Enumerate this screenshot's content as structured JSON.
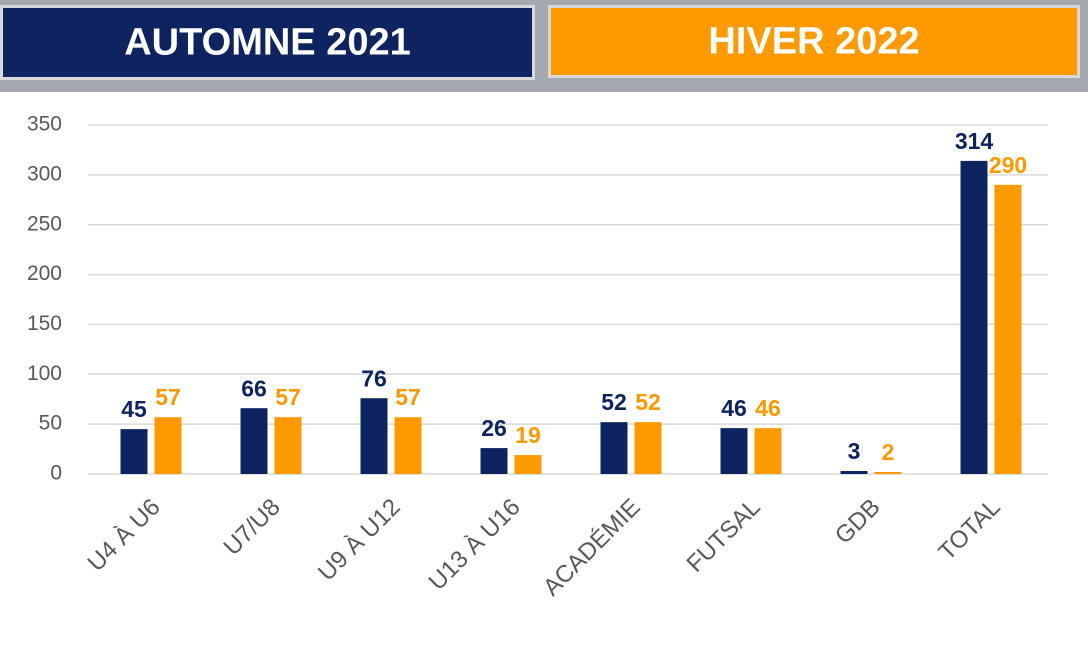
{
  "chart_data": {
    "type": "bar",
    "categories": [
      "U4 À U6",
      "U7/U8",
      "U9 À U12",
      "U13 À U16",
      "ACADÉMIE",
      "FUTSAL",
      "GDB",
      "TOTAL"
    ],
    "series": [
      {
        "name": "AUTOMNE 2021",
        "color": "#0d2461",
        "values": [
          45,
          66,
          76,
          26,
          52,
          46,
          3,
          314
        ]
      },
      {
        "name": "HIVER 2022",
        "color": "#ff9900",
        "values": [
          57,
          57,
          57,
          19,
          52,
          46,
          2,
          290
        ]
      }
    ],
    "ylim": [
      0,
      350
    ],
    "yticks": [
      0,
      50,
      100,
      150,
      200,
      250,
      300,
      350
    ],
    "grid": true
  }
}
